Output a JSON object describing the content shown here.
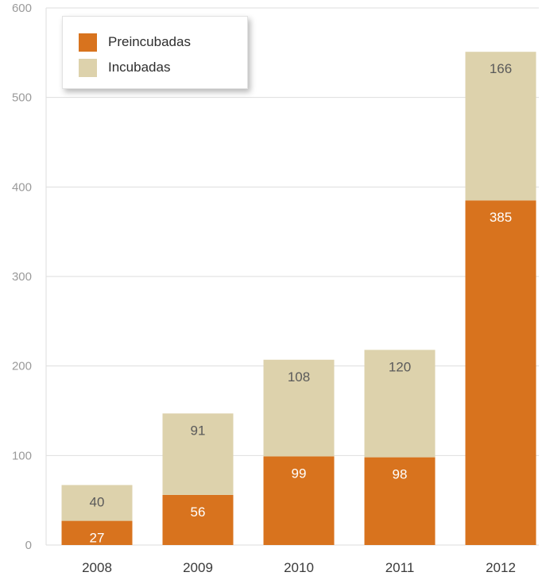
{
  "colors": {
    "preincubadas": "#d8731e",
    "incubadas": "#ddd2ac",
    "grid": "#dedede"
  },
  "chart_data": {
    "type": "bar",
    "stacked": true,
    "categories": [
      "2008",
      "2009",
      "2010",
      "2011",
      "2012"
    ],
    "series": [
      {
        "name": "Preincubadas",
        "values": [
          27,
          56,
          99,
          98,
          385
        ]
      },
      {
        "name": "Incubadas",
        "values": [
          40,
          91,
          108,
          120,
          166
        ]
      }
    ],
    "ylim": [
      0,
      600
    ],
    "yticks": [
      "0",
      "100",
      "200",
      "300",
      "400",
      "500",
      "600"
    ],
    "grid": true,
    "legend": "top-left",
    "title": "",
    "xlabel": "",
    "ylabel": ""
  }
}
